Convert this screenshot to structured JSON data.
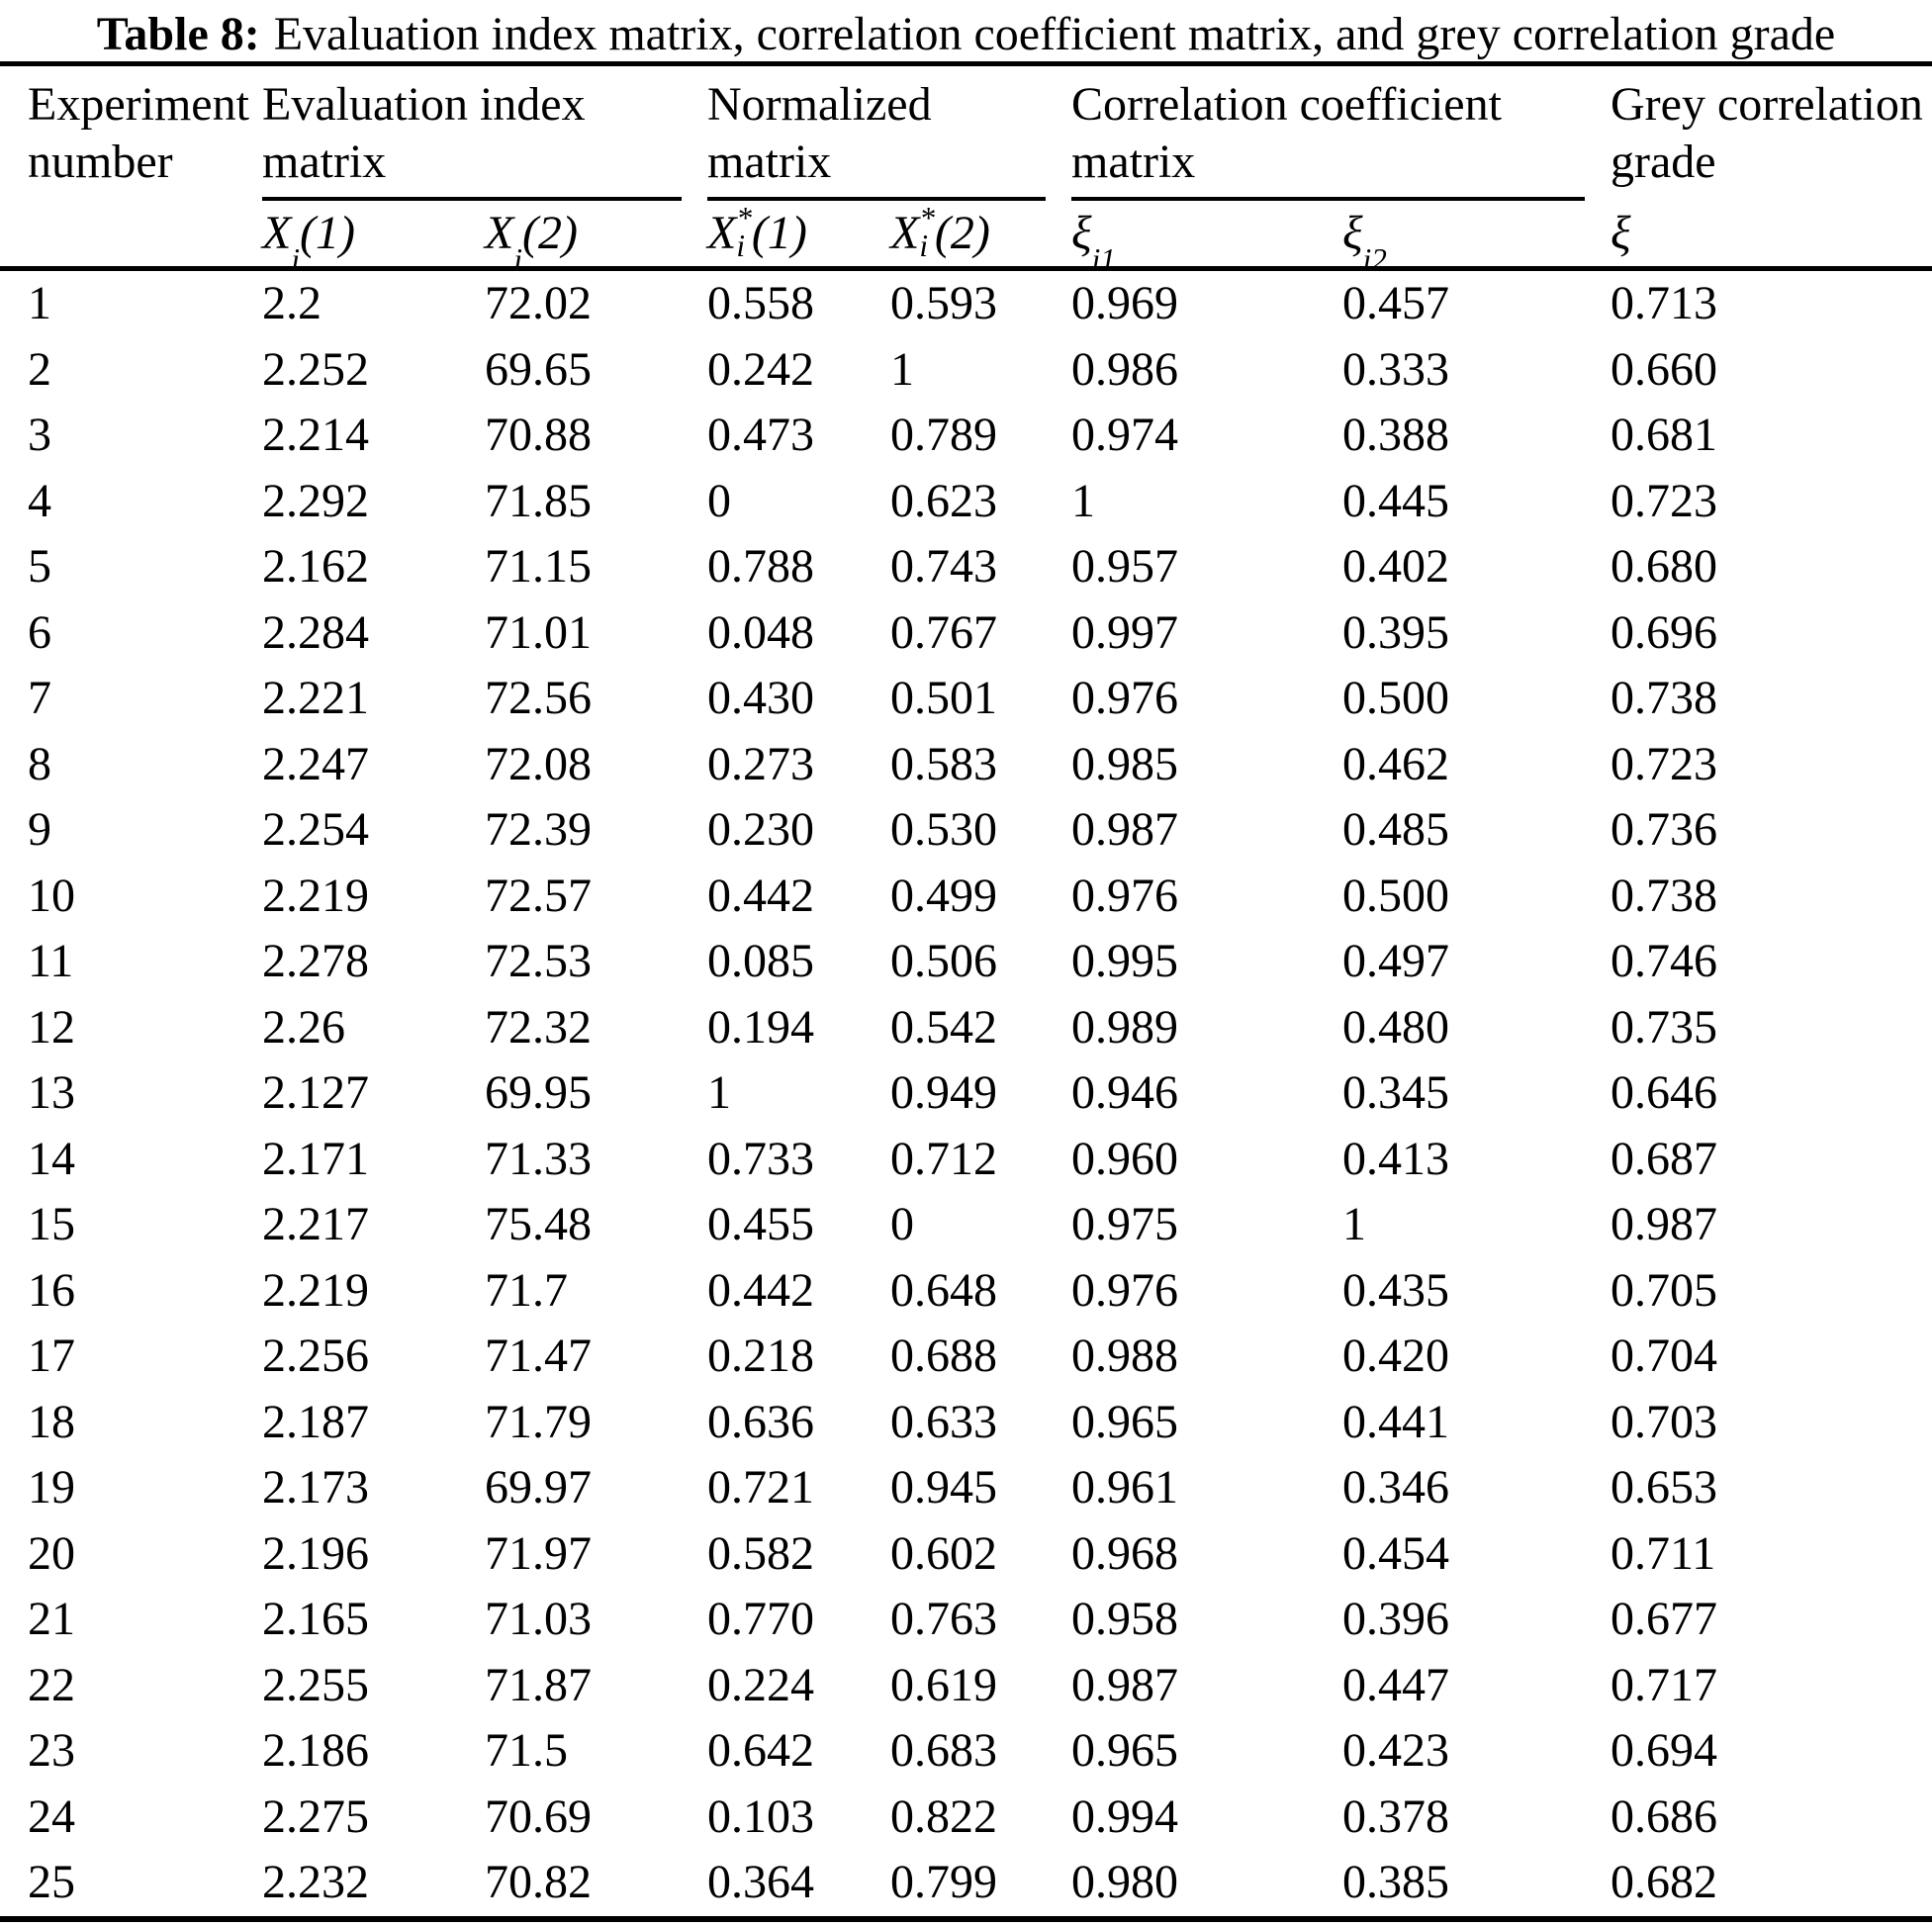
{
  "caption": {
    "label": "Table 8:",
    "text": "Evaluation index matrix, correlation coefficient matrix, and grey correlation grade"
  },
  "table": {
    "groups": [
      {
        "title": "Experiment\nnumber"
      },
      {
        "title": "Evaluation index\nmatrix"
      },
      {
        "title": "Normalized\nmatrix"
      },
      {
        "title": "Correlation coefficient\nmatrix"
      },
      {
        "title": "Grey correlation\ngrade"
      }
    ],
    "subheaders": [
      "X_{i}(1)",
      "X_{i}(2)",
      "X^{*}_{i}(1)",
      "X^{*}_{i}(2)",
      "ξ_{i1}",
      "ξ_{i2}",
      "ξ"
    ],
    "rows": [
      [
        "1",
        "2.2",
        "72.02",
        "0.558",
        "0.593",
        "0.969",
        "0.457",
        "0.713"
      ],
      [
        "2",
        "2.252",
        "69.65",
        "0.242",
        "1",
        "0.986",
        "0.333",
        "0.660"
      ],
      [
        "3",
        "2.214",
        "70.88",
        "0.473",
        "0.789",
        "0.974",
        "0.388",
        "0.681"
      ],
      [
        "4",
        "2.292",
        "71.85",
        "0",
        "0.623",
        "1",
        "0.445",
        "0.723"
      ],
      [
        "5",
        "2.162",
        "71.15",
        "0.788",
        "0.743",
        "0.957",
        "0.402",
        "0.680"
      ],
      [
        "6",
        "2.284",
        "71.01",
        "0.048",
        "0.767",
        "0.997",
        "0.395",
        "0.696"
      ],
      [
        "7",
        "2.221",
        "72.56",
        "0.430",
        "0.501",
        "0.976",
        "0.500",
        "0.738"
      ],
      [
        "8",
        "2.247",
        "72.08",
        "0.273",
        "0.583",
        "0.985",
        "0.462",
        "0.723"
      ],
      [
        "9",
        "2.254",
        "72.39",
        "0.230",
        "0.530",
        "0.987",
        "0.485",
        "0.736"
      ],
      [
        "10",
        "2.219",
        "72.57",
        "0.442",
        "0.499",
        "0.976",
        "0.500",
        "0.738"
      ],
      [
        "11",
        "2.278",
        "72.53",
        "0.085",
        "0.506",
        "0.995",
        "0.497",
        "0.746"
      ],
      [
        "12",
        "2.26",
        "72.32",
        "0.194",
        "0.542",
        "0.989",
        "0.480",
        "0.735"
      ],
      [
        "13",
        "2.127",
        "69.95",
        "1",
        "0.949",
        "0.946",
        "0.345",
        "0.646"
      ],
      [
        "14",
        "2.171",
        "71.33",
        "0.733",
        "0.712",
        "0.960",
        "0.413",
        "0.687"
      ],
      [
        "15",
        "2.217",
        "75.48",
        "0.455",
        "0",
        "0.975",
        "1",
        "0.987"
      ],
      [
        "16",
        "2.219",
        "71.7",
        "0.442",
        "0.648",
        "0.976",
        "0.435",
        "0.705"
      ],
      [
        "17",
        "2.256",
        "71.47",
        "0.218",
        "0.688",
        "0.988",
        "0.420",
        "0.704"
      ],
      [
        "18",
        "2.187",
        "71.79",
        "0.636",
        "0.633",
        "0.965",
        "0.441",
        "0.703"
      ],
      [
        "19",
        "2.173",
        "69.97",
        "0.721",
        "0.945",
        "0.961",
        "0.346",
        "0.653"
      ],
      [
        "20",
        "2.196",
        "71.97",
        "0.582",
        "0.602",
        "0.968",
        "0.454",
        "0.711"
      ],
      [
        "21",
        "2.165",
        "71.03",
        "0.770",
        "0.763",
        "0.958",
        "0.396",
        "0.677"
      ],
      [
        "22",
        "2.255",
        "71.87",
        "0.224",
        "0.619",
        "0.987",
        "0.447",
        "0.717"
      ],
      [
        "23",
        "2.186",
        "71.5",
        "0.642",
        "0.683",
        "0.965",
        "0.423",
        "0.694"
      ],
      [
        "24",
        "2.275",
        "70.69",
        "0.103",
        "0.822",
        "0.994",
        "0.378",
        "0.686"
      ],
      [
        "25",
        "2.232",
        "70.82",
        "0.364",
        "0.799",
        "0.980",
        "0.385",
        "0.682"
      ]
    ]
  },
  "colors": {
    "text": "#000000",
    "background": "#ffffff",
    "rule": "#000000"
  }
}
